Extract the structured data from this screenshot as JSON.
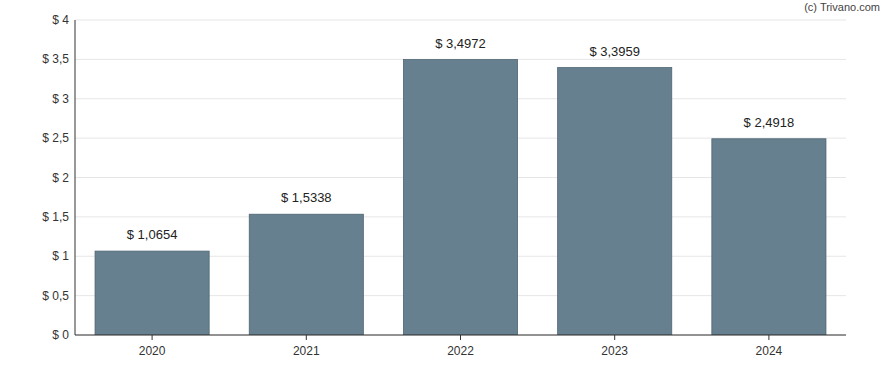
{
  "chart_data": {
    "type": "bar",
    "annotations": [
      "(c) Trivano.com"
    ],
    "categories": [
      "2020",
      "2021",
      "2022",
      "2023",
      "2024"
    ],
    "values": [
      1.0654,
      1.5338,
      3.4972,
      3.3959,
      2.4918
    ],
    "value_labels": [
      "$ 1,0654",
      "$ 1,5338",
      "$ 3,4972",
      "$ 3,3959",
      "$ 2,4918"
    ],
    "data_labels": true,
    "color": "#66808f",
    "ylim": [
      0,
      4
    ],
    "yticks": [
      {
        "value": 0,
        "label": "$ 0"
      },
      {
        "value": 0.5,
        "label": "$ 0,5"
      },
      {
        "value": 1,
        "label": "$ 1"
      },
      {
        "value": 1.5,
        "label": "$ 1,5"
      },
      {
        "value": 2,
        "label": "$ 2"
      },
      {
        "value": 2.5,
        "label": "$ 2,5"
      },
      {
        "value": 3,
        "label": "$ 3"
      },
      {
        "value": 3.5,
        "label": "$ 3,5"
      },
      {
        "value": 4,
        "label": "$ 4"
      }
    ],
    "grid": true
  }
}
